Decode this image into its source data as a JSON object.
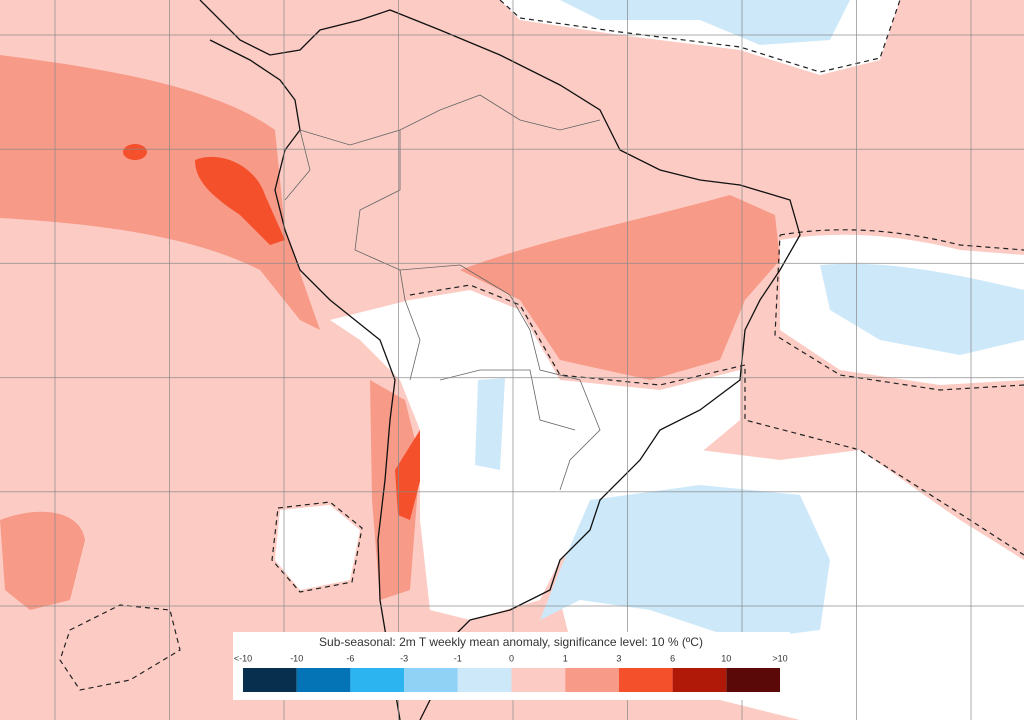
{
  "legend": {
    "title": "Sub-seasonal: 2m T weekly mean anomaly, significance level: 10 % (ºC)",
    "labels": [
      "<-10",
      "-10",
      "-6",
      "-3",
      "-1",
      "0",
      "1",
      "3",
      "6",
      "10",
      ">10"
    ],
    "colors": [
      "#08304e",
      "#0574b6",
      "#2cb4f0",
      "#8fd2f5",
      "#cde9f9",
      "#fcccc4",
      "#f89a88",
      "#f4502c",
      "#b01808",
      "#5a0808"
    ]
  }
}
